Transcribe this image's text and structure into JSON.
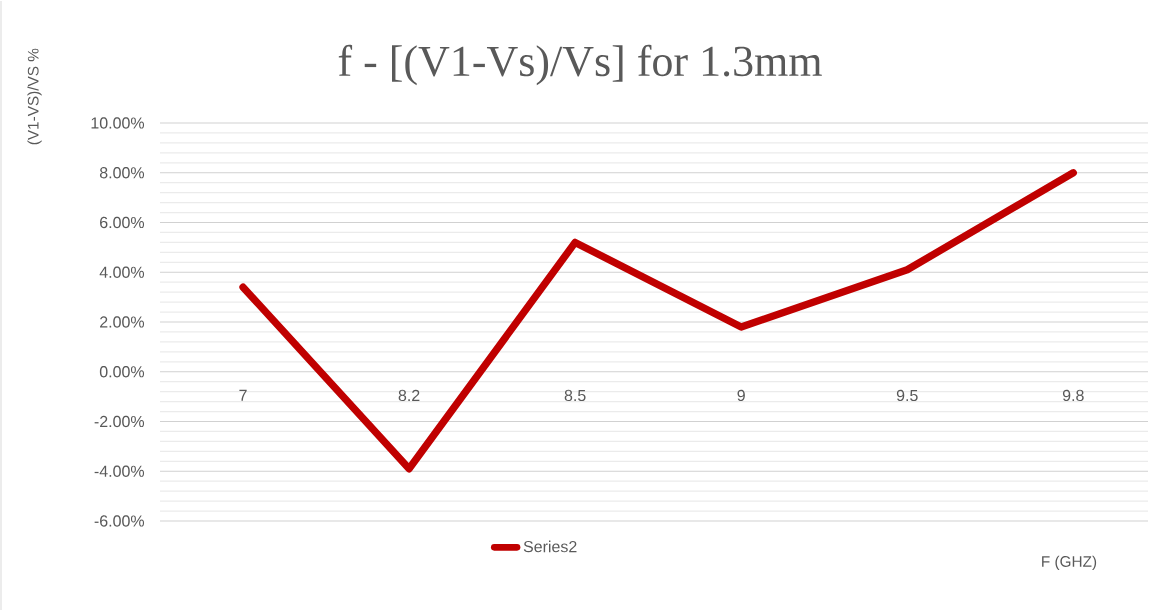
{
  "chart_data": {
    "type": "line",
    "title": "f - [(V1-Vs)/Vs] for 1.3mm",
    "xlabel": "F (GHZ)",
    "ylabel": "(V1-VS)/VS %",
    "categories": [
      "7",
      "8.2",
      "8.5",
      "9",
      "9.5",
      "9.8"
    ],
    "series": [
      {
        "name": "Series2",
        "color": "#c00000",
        "values": [
          3.4,
          -3.9,
          5.2,
          1.8,
          4.1,
          8.0
        ]
      }
    ],
    "ylim": [
      -6,
      10
    ],
    "yticks": [
      {
        "value": -6,
        "label": "-6.00%"
      },
      {
        "value": -4,
        "label": "-4.00%"
      },
      {
        "value": -2,
        "label": "-2.00%"
      },
      {
        "value": 0,
        "label": "0.00%"
      },
      {
        "value": 2,
        "label": "2.00%"
      },
      {
        "value": 4,
        "label": "4.00%"
      },
      {
        "value": 6,
        "label": "6.00%"
      },
      {
        "value": 8,
        "label": "8.00%"
      },
      {
        "value": 10,
        "label": "10.00%"
      }
    ],
    "grid": "y",
    "legend": "bottom",
    "marker": "none",
    "line_style": "solid"
  }
}
